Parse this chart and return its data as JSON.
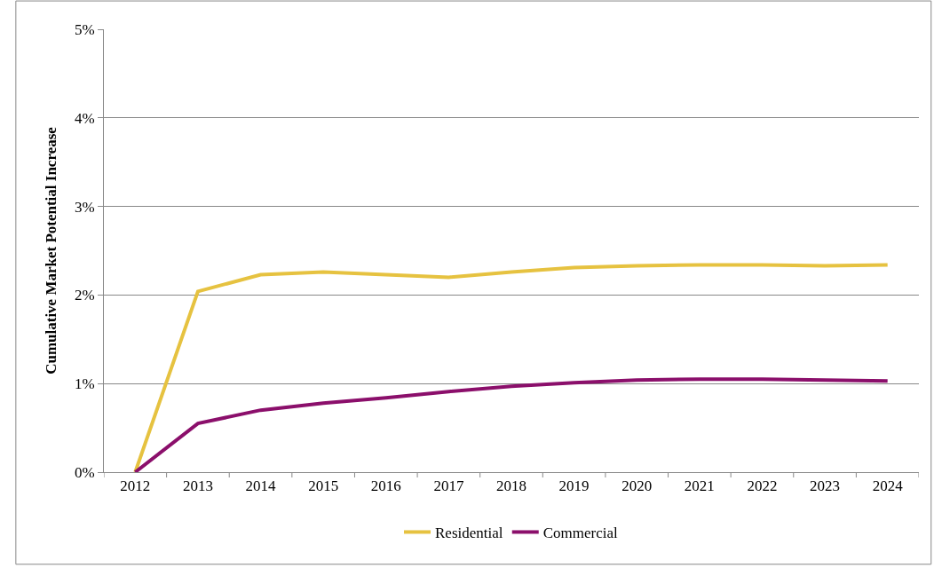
{
  "chart_data": {
    "type": "line",
    "ylabel": "Cumulative Market Potential Increase",
    "categories": [
      "2012",
      "2013",
      "2014",
      "2015",
      "2016",
      "2017",
      "2018",
      "2019",
      "2020",
      "2021",
      "2022",
      "2023",
      "2024"
    ],
    "series": [
      {
        "name": "Residential",
        "color": "#e6c240",
        "values": [
          0,
          2.04,
          2.23,
          2.26,
          2.23,
          2.2,
          2.26,
          2.31,
          2.33,
          2.34,
          2.34,
          2.33,
          2.34
        ]
      },
      {
        "name": "Commercial",
        "color": "#8b0f6b",
        "values": [
          0,
          0.55,
          0.7,
          0.78,
          0.84,
          0.91,
          0.97,
          1.01,
          1.04,
          1.05,
          1.05,
          1.04,
          1.03
        ]
      }
    ],
    "ylim": [
      0,
      5
    ],
    "yticks": [
      {
        "value": 0,
        "label": "0%"
      },
      {
        "value": 1,
        "label": "1%"
      },
      {
        "value": 2,
        "label": "2%"
      },
      {
        "value": 3,
        "label": "3%"
      },
      {
        "value": 4,
        "label": "4%"
      },
      {
        "value": 5,
        "label": "5%"
      }
    ],
    "grid": "y",
    "legend": "bottom",
    "marker": "none",
    "line_style": "solid"
  }
}
